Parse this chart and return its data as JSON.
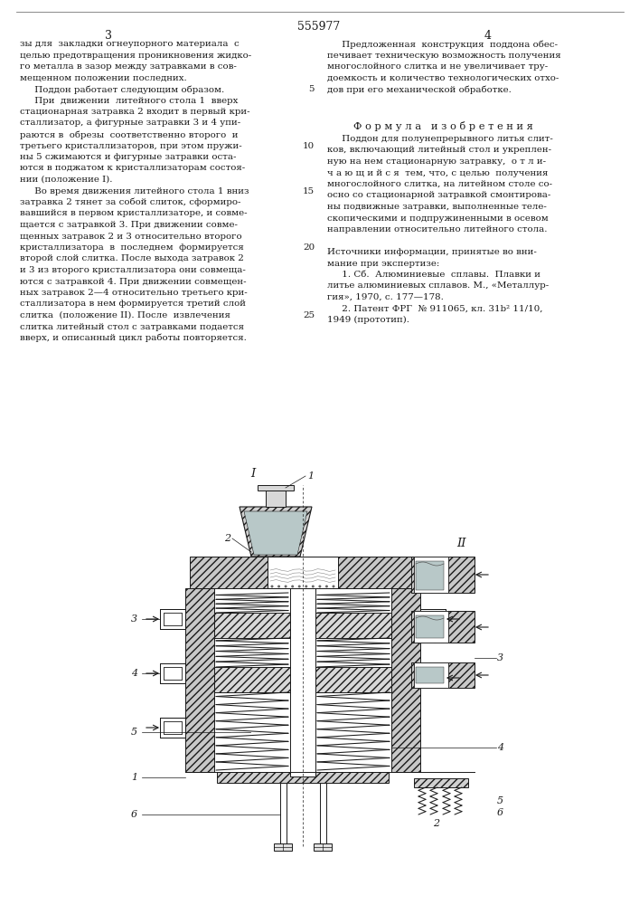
{
  "patent_number": "555977",
  "page_numbers": [
    "3",
    "4"
  ],
  "bg_color": "#ffffff",
  "text_color": "#1a1a1a",
  "col1_text": [
    "зы для  закладки огнеупорного материала  с",
    "целью предотвращения проникновения жидко-",
    "го металла в зазор между затравками в сов-",
    "мещенном положении последних.",
    "     Поддон работает следующим образом.",
    "     При  движении  литейного стола 1  вверх",
    "стационарная затравка 2 входит в первый кри-",
    "сталлизатор, а фигурные затравки 3 и 4 упи-",
    "раются в  обрезы  соответственно второго  и",
    "третьего кристаллизаторов, при этом пружи-",
    "ны 5 сжимаются и фигурные затравки оста-",
    "ются в поджатом к кристаллизаторам состоя-",
    "нии (положение I).",
    "     Во время движения литейного стола 1 вниз",
    "затравка 2 тянет за собой слиток, сформиро-",
    "вавшийся в первом кристаллизаторе, и совме-",
    "щается с затравкой 3. При движении совме-",
    "щенных затравок 2 и 3 относительно второго",
    "кристаллизатора  в  последнем  формируется",
    "второй слой слитка. После выхода затравок 2",
    "и 3 из второго кристаллизатора они совмеща-",
    "ются с затравкой 4. При движении совмещен-",
    "ных затравок 2—4 относительно третьего кри-",
    "сталлизатора в нем формируется третий слой",
    "слитка  (положение II). После  извлечения",
    "слитка литейный стол с затравками подается",
    "вверх, и описанный цикл работы повторяется."
  ],
  "col2_text_top": [
    "     Предложенная  конструкция  поддона обес-",
    "печивает техническую возможность получения",
    "многослойного слитка и не увеличивает тру-",
    "доемкость и количество технологических отхо-",
    "дов при его механической обработке."
  ],
  "formula_title": "Ф о р м у л а   и з о б р е т е н и я",
  "formula_text": [
    "     Поддон для полунепрерывного литья слит-",
    "ков, включающий литейный стол и укреплен-",
    "ную на нем стационарную затравку,  о т л и-",
    "ч а ю щ и й с я  тем, что, с целью  получения",
    "многослойного слитка, на литейном столе со-",
    "осно со стационарной затравкой смонтирова-",
    "ны подвижные затравки, выполненные теле-",
    "скопическими и подпружиненными в осевом",
    "направлении относительно литейного стола."
  ],
  "sources_title": "Источники информации, принятые во вни-",
  "sources_text": [
    "мание при экспертизе:",
    "     1. Сб.  Алюминиевые  сплавы.  Плавки и",
    "литье алюминиевых сплавов. М., «Металлур-",
    "гия», 1970, с. 177—178.",
    "     2. Патент ФРГ  № 911065, кл. 31b² 11/10,",
    "1949 (прототип)."
  ],
  "line_num_map": {
    "4": "5",
    "9": "10",
    "13": "15",
    "18": "20",
    "24": "25"
  }
}
